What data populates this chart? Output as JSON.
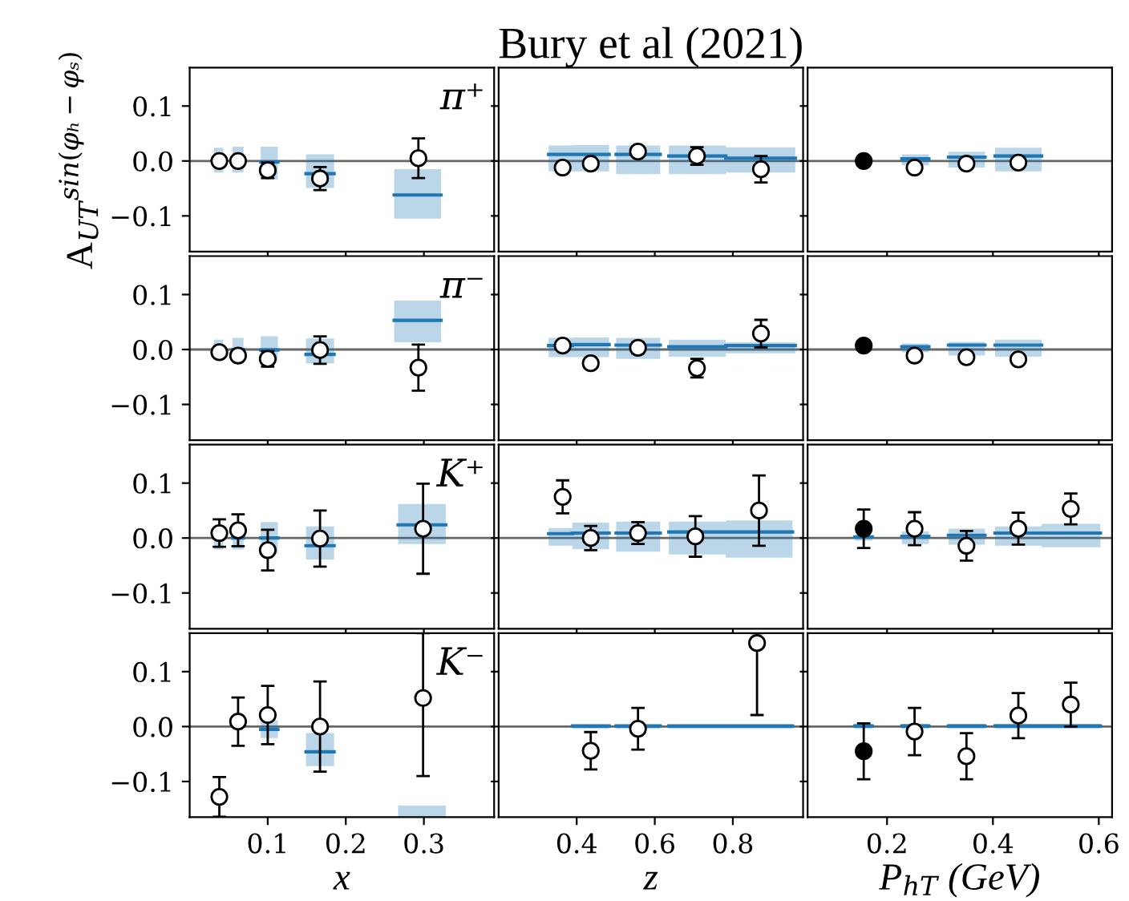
{
  "chart_data": [
    {
      "type": "scatter",
      "ylabel": "A$_{UT}$$^{sin(φₕ−φₛ)}$",
      "annotations": [
        "π⁺"
      ],
      "xlim": [
        0,
        0.39
      ],
      "ylim": [
        -0.165,
        0.17
      ],
      "xticks": [
        0.1,
        0.2,
        0.3
      ],
      "yticks": [
        {
          "value": -0.1,
          "label": "−0.1"
        },
        {
          "value": 0,
          "label": "0.0"
        },
        {
          "value": 0.1,
          "label": "0.1"
        }
      ],
      "tick_labels": "y",
      "marker": "circle",
      "ref_lines": [
        {
          "axis": "y",
          "value": 0,
          "color": "#666666"
        }
      ],
      "series": [
        {
          "type": "line",
          "marker": "none",
          "color": "#1f77b4",
          "x": [
            0.031,
            0.043,
            null,
            0.055,
            0.069,
            null,
            0.091,
            0.113,
            null,
            0.149,
            0.185,
            null,
            0.262,
            0.322
          ],
          "values": [
            null,
            null,
            null,
            null,
            null,
            null,
            -0.002,
            -0.002,
            null,
            -0.023,
            -0.023,
            null,
            -0.062,
            -0.062
          ],
          "lower": [
            -0.021,
            -0.021,
            null,
            -0.021,
            -0.021,
            null,
            -0.034,
            -0.034,
            null,
            -0.049,
            -0.049,
            null,
            -0.105,
            -0.105
          ],
          "upper": [
            0.024,
            0.024,
            null,
            0.026,
            0.026,
            null,
            0.026,
            0.026,
            null,
            0.012,
            0.012,
            null,
            -0.015,
            -0.015
          ]
        },
        {
          "color": "#ffffff",
          "x": [
            0.038,
            0.062,
            0.1,
            0.167,
            0.293
          ],
          "values": [
            0,
            0,
            -0.017,
            -0.032,
            0.005
          ],
          "errors": [
            0.005,
            0.005,
            0.014,
            0.021,
            0.036
          ]
        }
      ]
    },
    {
      "type": "scatter",
      "title": "Bury et al (2021)",
      "xlim": [
        0.2,
        0.98
      ],
      "ylim": [
        -0.165,
        0.17
      ],
      "xticks": [
        0.4,
        0.6,
        0.8
      ],
      "yticks": [
        -0.1,
        0,
        0.1
      ],
      "tick_labels": false,
      "marker": "circle",
      "ref_lines": [
        {
          "axis": "y",
          "value": 0,
          "color": "#666666"
        }
      ],
      "series": [
        {
          "type": "line",
          "marker": "none",
          "color": "#1f77b4",
          "x": [
            0.328,
            0.389,
            null,
            0.389,
            0.483,
            null,
            0.501,
            0.614,
            null,
            0.636,
            0.782,
            null,
            0.782,
            0.96
          ],
          "values": [
            0.012,
            0.012,
            null,
            0.012,
            0.012,
            null,
            0.012,
            0.012,
            null,
            0.009,
            0.009,
            null,
            0.005,
            0.005
          ],
          "lower": [
            -0.019,
            -0.019,
            null,
            -0.019,
            -0.019,
            null,
            -0.024,
            -0.024,
            null,
            -0.024,
            -0.024,
            null,
            -0.021,
            -0.021
          ],
          "upper": [
            0.028,
            0.028,
            null,
            0.029,
            0.029,
            null,
            0.028,
            0.028,
            null,
            0.028,
            0.028,
            null,
            0.025,
            0.025
          ]
        },
        {
          "color": "#ffffff",
          "x": [
            0.364,
            0.436,
            0.557,
            0.708,
            0.872
          ],
          "values": [
            -0.012,
            -0.005,
            0.017,
            0.009,
            -0.015
          ],
          "errors": [
            0.008,
            0.006,
            0.009,
            0.016,
            0.024
          ]
        }
      ]
    },
    {
      "type": "scatter",
      "xlim": [
        0.05,
        0.625
      ],
      "ylim": [
        -0.165,
        0.17
      ],
      "xticks": [
        0.2,
        0.4,
        0.6
      ],
      "yticks": [
        -0.1,
        0,
        0.1
      ],
      "tick_labels": false,
      "marker": "circle",
      "ref_lines": [
        {
          "axis": "y",
          "value": 0,
          "color": "#666666"
        }
      ],
      "series": [
        {
          "type": "line",
          "marker": "none",
          "color": "#1f77b4",
          "x": [
            0.228,
            0.279,
            null,
            0.316,
            0.385,
            null,
            0.404,
            0.492
          ],
          "values": [
            0.004,
            0.004,
            null,
            0.007,
            0.007,
            null,
            0.009,
            0.009
          ],
          "lower": [
            -0.008,
            -0.008,
            null,
            -0.012,
            -0.012,
            null,
            -0.019,
            -0.019
          ],
          "upper": [
            0.012,
            0.012,
            null,
            0.017,
            0.017,
            null,
            0.024,
            0.024
          ]
        },
        {
          "color": "#ffffff",
          "x": [
            0.252,
            0.35,
            0.448
          ],
          "values": [
            -0.012,
            -0.005,
            -0.003
          ],
          "errors": [
            0.007,
            0.005,
            0.005
          ]
        },
        {
          "color": "#000000",
          "x": [
            0.156
          ],
          "values": [
            0
          ],
          "errors": [
            0.008
          ]
        }
      ]
    },
    {
      "type": "scatter",
      "annotations": [
        "π⁻"
      ],
      "xlim": [
        0,
        0.39
      ],
      "ylim": [
        -0.165,
        0.17
      ],
      "xticks": [
        0.1,
        0.2,
        0.3
      ],
      "yticks": [
        {
          "value": -0.1,
          "label": "−0.1"
        },
        {
          "value": 0,
          "label": "0.0"
        },
        {
          "value": 0.1,
          "label": "0.1"
        }
      ],
      "tick_labels": "y",
      "marker": "circle",
      "ref_lines": [
        {
          "axis": "y",
          "value": 0,
          "color": "#666666"
        }
      ],
      "series": [
        {
          "type": "line",
          "marker": "none",
          "color": "#1f77b4",
          "x": [
            0.031,
            0.043,
            null,
            0.055,
            0.069,
            null,
            0.091,
            0.113,
            null,
            0.149,
            0.185,
            null,
            0.262,
            0.322
          ],
          "values": [
            0,
            0,
            null,
            0,
            0,
            null,
            -0.001,
            -0.001,
            null,
            -0.009,
            -0.009,
            null,
            0.053,
            0.053
          ],
          "lower": [
            -0.016,
            -0.016,
            null,
            -0.018,
            -0.018,
            null,
            -0.021,
            -0.021,
            null,
            -0.025,
            -0.025,
            null,
            0.013,
            0.013
          ],
          "upper": [
            0.018,
            0.018,
            null,
            0.021,
            0.021,
            null,
            0.024,
            0.024,
            null,
            0.02,
            0.02,
            null,
            0.089,
            0.089
          ]
        },
        {
          "color": "#ffffff",
          "x": [
            0.038,
            0.062,
            0.1,
            0.167,
            0.293
          ],
          "values": [
            -0.005,
            -0.011,
            -0.017,
            -0.001,
            -0.033
          ],
          "errors": [
            0.006,
            0.008,
            0.014,
            0.025,
            0.042
          ]
        }
      ]
    },
    {
      "type": "scatter",
      "xlim": [
        0.2,
        0.98
      ],
      "ylim": [
        -0.165,
        0.17
      ],
      "xticks": [
        0.4,
        0.6,
        0.8
      ],
      "yticks": [
        -0.1,
        0,
        0.1
      ],
      "tick_labels": false,
      "marker": "circle",
      "ref_lines": [
        {
          "axis": "y",
          "value": 0,
          "color": "#666666"
        }
      ],
      "series": [
        {
          "type": "line",
          "marker": "none",
          "color": "#1f77b4",
          "x": [
            0.328,
            0.389,
            null,
            0.389,
            0.483,
            null,
            0.501,
            0.614,
            null,
            0.636,
            0.782,
            null,
            0.782,
            0.96
          ],
          "values": [
            0.007,
            0.007,
            null,
            0.009,
            0.009,
            null,
            0.008,
            0.008,
            null,
            0.005,
            0.005,
            null,
            0.007,
            0.007
          ],
          "lower": [
            -0.014,
            -0.014,
            null,
            -0.014,
            -0.014,
            null,
            -0.017,
            -0.017,
            null,
            -0.013,
            -0.013,
            null,
            -0.007,
            -0.007
          ],
          "upper": [
            0.021,
            0.021,
            null,
            0.022,
            0.022,
            null,
            0.021,
            0.021,
            null,
            0.018,
            0.018,
            null,
            0.013,
            0.013
          ]
        },
        {
          "color": "#ffffff",
          "x": [
            0.364,
            0.436,
            0.557,
            0.708,
            0.872
          ],
          "values": [
            0.007,
            -0.025,
            0.003,
            -0.034,
            0.029
          ],
          "errors": [
            0.008,
            0.009,
            0.01,
            0.017,
            0.025
          ]
        }
      ]
    },
    {
      "type": "scatter",
      "xlim": [
        0.05,
        0.625
      ],
      "ylim": [
        -0.165,
        0.17
      ],
      "xticks": [
        0.2,
        0.4,
        0.6
      ],
      "yticks": [
        -0.1,
        0,
        0.1
      ],
      "tick_labels": false,
      "marker": "circle",
      "ref_lines": [
        {
          "axis": "y",
          "value": 0,
          "color": "#666666"
        }
      ],
      "series": [
        {
          "type": "line",
          "marker": "none",
          "color": "#1f77b4",
          "x": [
            0.228,
            0.279,
            null,
            0.316,
            0.385,
            null,
            0.404,
            0.492
          ],
          "values": [
            0.005,
            0.005,
            null,
            0.008,
            0.008,
            null,
            0.008,
            0.008
          ],
          "lower": [
            -0.005,
            -0.005,
            null,
            -0.011,
            -0.011,
            null,
            -0.013,
            -0.013
          ],
          "upper": [
            0.011,
            0.011,
            null,
            0.014,
            0.014,
            null,
            0.018,
            0.018
          ]
        },
        {
          "color": "#ffffff",
          "x": [
            0.252,
            0.35,
            0.448
          ],
          "values": [
            -0.011,
            -0.014,
            -0.018
          ],
          "errors": [
            null,
            0.005,
            0.005
          ]
        },
        {
          "color": "#000000",
          "x": [
            0.156
          ],
          "values": [
            0.007
          ],
          "errors": [
            0.008
          ]
        }
      ]
    },
    {
      "type": "scatter",
      "annotations": [
        "K⁺"
      ],
      "xlim": [
        0,
        0.39
      ],
      "ylim": [
        -0.165,
        0.17
      ],
      "xticks": [
        0.1,
        0.2,
        0.3
      ],
      "yticks": [
        {
          "value": -0.1,
          "label": "−0.1"
        },
        {
          "value": 0,
          "label": "0.0"
        },
        {
          "value": 0.1,
          "label": "0.1"
        }
      ],
      "tick_labels": "y",
      "marker": "circle",
      "ref_lines": [
        {
          "axis": "y",
          "value": 0,
          "color": "#666666"
        }
      ],
      "series": [
        {
          "type": "line",
          "marker": "none",
          "color": "#1f77b4",
          "x": [
            0.031,
            0.043,
            null,
            0.055,
            0.069,
            null,
            0.091,
            0.113,
            null,
            0.149,
            0.185,
            null,
            0.267,
            0.328
          ],
          "values": [
            0,
            0,
            null,
            0,
            0,
            null,
            0,
            0,
            null,
            -0.014,
            -0.014,
            null,
            0.024,
            0.024
          ],
          "lower": [
            -0.021,
            -0.021,
            null,
            -0.021,
            -0.021,
            null,
            -0.029,
            -0.029,
            null,
            -0.039,
            -0.039,
            null,
            -0.011,
            -0.011
          ],
          "upper": [
            0.022,
            0.022,
            null,
            0.024,
            0.024,
            null,
            0.029,
            0.029,
            null,
            0.021,
            0.021,
            null,
            0.062,
            0.062
          ]
        },
        {
          "color": "#ffffff",
          "x": [
            0.038,
            0.062,
            0.1,
            0.167,
            0.299
          ],
          "values": [
            0.009,
            0.014,
            -0.022,
            -0.001,
            0.017
          ],
          "errors": [
            0.025,
            0.029,
            0.037,
            0.051,
            0.082
          ]
        }
      ]
    },
    {
      "type": "scatter",
      "xlim": [
        0.2,
        0.98
      ],
      "ylim": [
        -0.165,
        0.17
      ],
      "xticks": [
        0.4,
        0.6,
        0.8
      ],
      "yticks": [
        -0.1,
        0,
        0.1
      ],
      "tick_labels": false,
      "marker": "circle",
      "ref_lines": [
        {
          "axis": "y",
          "value": 0,
          "color": "#666666"
        }
      ],
      "series": [
        {
          "type": "line",
          "marker": "none",
          "color": "#1f77b4",
          "x": [
            0.328,
            0.389,
            null,
            0.389,
            0.483,
            null,
            0.501,
            0.614,
            null,
            0.636,
            0.782,
            null,
            0.782,
            0.953
          ],
          "values": [
            0.008,
            0.008,
            null,
            0.009,
            0.009,
            null,
            0.009,
            0.009,
            null,
            0.011,
            0.011,
            null,
            0.011,
            0.011
          ],
          "lower": [
            -0.014,
            -0.014,
            null,
            -0.02,
            -0.02,
            null,
            -0.025,
            -0.025,
            null,
            -0.03,
            -0.03,
            null,
            -0.036,
            -0.036
          ],
          "upper": [
            0.018,
            0.018,
            null,
            0.028,
            0.028,
            null,
            0.03,
            0.03,
            null,
            0.03,
            0.03,
            null,
            0.032,
            0.032
          ]
        },
        {
          "color": "#ffffff",
          "x": [
            0.364,
            0.436,
            0.557,
            0.704,
            0.867
          ],
          "values": [
            0.075,
            0,
            0.009,
            0.003,
            0.05
          ],
          "errors": [
            0.03,
            0.022,
            0.02,
            0.037,
            0.064
          ]
        }
      ]
    },
    {
      "type": "scatter",
      "xlim": [
        0.05,
        0.625
      ],
      "ylim": [
        -0.165,
        0.17
      ],
      "xticks": [
        0.2,
        0.4,
        0.6
      ],
      "yticks": [
        -0.1,
        0,
        0.1
      ],
      "tick_labels": false,
      "marker": "circle",
      "ref_lines": [
        {
          "axis": "y",
          "value": 0,
          "color": "#666666"
        }
      ],
      "series": [
        {
          "type": "line",
          "marker": "none",
          "color": "#1f77b4",
          "x": [
            0.139,
            0.172,
            null,
            0.228,
            0.279,
            null,
            0.316,
            0.385,
            null,
            0.404,
            0.492,
            null,
            0.492,
            0.603
          ],
          "values": [
            0.002,
            0.002,
            null,
            0.003,
            0.003,
            null,
            0.005,
            0.005,
            null,
            0.009,
            0.009,
            null,
            0.009,
            0.009
          ],
          "lower": [
            -0.005,
            -0.005,
            null,
            -0.011,
            -0.011,
            null,
            -0.012,
            -0.012,
            null,
            -0.014,
            -0.014,
            null,
            -0.017,
            -0.017
          ],
          "upper": [
            0.005,
            0.005,
            null,
            0.012,
            0.012,
            null,
            0.017,
            0.017,
            null,
            0.021,
            0.021,
            null,
            0.026,
            0.026
          ]
        },
        {
          "color": "#ffffff",
          "x": [
            0.252,
            0.35,
            0.448,
            0.547
          ],
          "values": [
            0.017,
            -0.014,
            0.017,
            0.053
          ],
          "errors": [
            0.03,
            0.027,
            0.029,
            0.028
          ]
        },
        {
          "color": "#000000",
          "x": [
            0.156
          ],
          "values": [
            0.017
          ],
          "errors": [
            0.035
          ]
        }
      ]
    },
    {
      "type": "scatter",
      "xlabel": "x",
      "annotations": [
        "K⁻"
      ],
      "xlim": [
        0,
        0.39
      ],
      "ylim": [
        -0.165,
        0.17
      ],
      "xticks": [
        0.1,
        0.2,
        0.3
      ],
      "yticks": [
        {
          "value": -0.1,
          "label": "−0.1"
        },
        {
          "value": 0,
          "label": "0.0"
        },
        {
          "value": 0.1,
          "label": "0.1"
        }
      ],
      "marker": "circle",
      "ref_lines": [
        {
          "axis": "y",
          "value": 0,
          "color": "#666666"
        }
      ],
      "series": [
        {
          "type": "line",
          "marker": "none",
          "color": "#1f77b4",
          "x": [
            0.091,
            0.113,
            null,
            0.149,
            0.185,
            null,
            0.267,
            0.328
          ],
          "values": [
            -0.005,
            -0.005,
            null,
            -0.046,
            -0.046,
            null,
            null,
            null
          ],
          "lower": [
            -0.021,
            -0.021,
            null,
            -0.072,
            -0.072,
            null,
            -0.165,
            -0.165
          ],
          "upper": [
            0.011,
            0.011,
            null,
            -0.012,
            -0.012,
            null,
            -0.144,
            -0.144
          ]
        },
        {
          "color": "#ffffff",
          "x": [
            0.038,
            0.062,
            0.1,
            0.167,
            0.299
          ],
          "values": [
            -0.128,
            0.009,
            0.021,
            0,
            0.052
          ],
          "errors": [
            0.036,
            0.044,
            0.053,
            0.082,
            [
              -0.09,
              0.17
            ]
          ]
        }
      ]
    },
    {
      "type": "scatter",
      "xlabel": "z",
      "xlim": [
        0.2,
        0.98
      ],
      "ylim": [
        -0.165,
        0.17
      ],
      "xticks": [
        0.4,
        0.6,
        0.8
      ],
      "yticks": [
        -0.1,
        0,
        0.1
      ],
      "tick_labels": "x",
      "marker": "circle",
      "ref_lines": [
        {
          "axis": "y",
          "value": 0,
          "color": "#666666"
        }
      ],
      "series": [
        {
          "type": "line",
          "marker": "none",
          "color": "#1f77b4",
          "x": [
            0.389,
            0.483,
            null,
            0.501,
            0.614,
            null,
            0.636,
            0.782,
            null,
            0.782,
            0.953
          ],
          "values": [
            0.001,
            0.001,
            null,
            0.001,
            0.001,
            null,
            0.001,
            0.001,
            null,
            0.001,
            0.001
          ],
          "lower": [
            -0.004,
            -0.004,
            null,
            -0.004,
            -0.004,
            null,
            -0.004,
            -0.004,
            null,
            -0.004,
            -0.004
          ],
          "upper": [
            0.004,
            0.004,
            null,
            0.004,
            0.004,
            null,
            0.004,
            0.004,
            null,
            0.004,
            0.004
          ]
        },
        {
          "color": "#ffffff",
          "x": [
            0.436,
            0.557,
            0.862
          ],
          "values": [
            -0.044,
            -0.004,
            0.152
          ],
          "errors": [
            0.034,
            0.038,
            [
              0.021,
              0.17
            ]
          ]
        }
      ]
    },
    {
      "type": "scatter",
      "xlabel": "P$_{hT}$ (GeV)",
      "xlim": [
        0.05,
        0.625
      ],
      "ylim": [
        -0.165,
        0.17
      ],
      "xticks": [
        0.2,
        0.4,
        0.6
      ],
      "yticks": [
        -0.1,
        0,
        0.1
      ],
      "tick_labels": "x",
      "marker": "circle",
      "ref_lines": [
        {
          "axis": "y",
          "value": 0,
          "color": "#666666"
        }
      ],
      "series": [
        {
          "type": "line",
          "marker": "none",
          "color": "#1f77b4",
          "x": [
            0.139,
            0.172,
            null,
            0.228,
            0.279,
            null,
            0.316,
            0.385,
            null,
            0.404,
            0.492,
            null,
            0.492,
            0.603
          ],
          "values": [
            0.001,
            0.001,
            null,
            0.001,
            0.001,
            null,
            0.001,
            0.001,
            null,
            0.001,
            0.001,
            null,
            0.001,
            0.001
          ],
          "lower": [
            -0.004,
            -0.004,
            null,
            -0.004,
            -0.004,
            null,
            -0.004,
            -0.004,
            null,
            -0.004,
            -0.004,
            null,
            -0.004,
            -0.004
          ],
          "upper": [
            0.005,
            0.005,
            null,
            0.005,
            0.005,
            null,
            0.005,
            0.005,
            null,
            0.005,
            0.005,
            null,
            0.005,
            0.005
          ]
        },
        {
          "color": "#ffffff",
          "x": [
            0.252,
            0.35,
            0.448,
            0.547
          ],
          "values": [
            -0.009,
            -0.054,
            0.02,
            0.04
          ],
          "errors": [
            0.043,
            0.042,
            0.041,
            0.04
          ]
        },
        {
          "color": "#000000",
          "x": [
            0.156
          ],
          "values": [
            -0.045
          ],
          "errors": [
            0.051
          ]
        }
      ]
    }
  ]
}
